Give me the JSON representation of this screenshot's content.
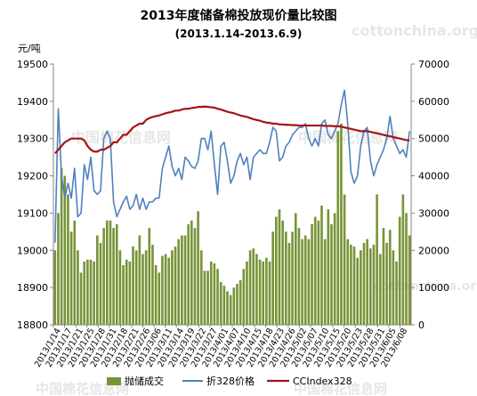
{
  "chart_data": {
    "type": "bar+line",
    "title": "2013年度储备棉投放现价量比较图",
    "subtitle": "(2013.1.14-2013.6.9)",
    "ylabel_left": "元/吨",
    "ylim_left": [
      18800,
      19500
    ],
    "yticks_left": [
      18800,
      18900,
      19000,
      19100,
      19200,
      19300,
      19400,
      19500
    ],
    "ylim_right": [
      0,
      70000
    ],
    "yticks_right": [
      0,
      10000,
      20000,
      30000,
      40000,
      50000,
      60000,
      70000
    ],
    "x_tick_labels": [
      "2013/1/14",
      "2013/1/17",
      "2013/1/21",
      "2013/1/25",
      "2013/1/28",
      "2013/1/31",
      "2013/2/18",
      "2013/2/21",
      "2013/2/26",
      "2013/3/06",
      "2013/3/11",
      "2013/3/14",
      "2013/3/19",
      "2013/3/22",
      "2013/3/27",
      "2013/4/01",
      "2013/4/07",
      "2013/4/10",
      "2013/4/15",
      "2013/4/18",
      "2013/4/23",
      "2013/4/26",
      "2013/5/02",
      "2013/5/07",
      "2013/5/10",
      "2013/5/15",
      "2013/5/20",
      "2013/5/23",
      "2013/5/28",
      "2013/5/31",
      "2013/6/05",
      "2013/6/08"
    ],
    "series": [
      {
        "name": "抛储成交",
        "kind": "bar",
        "axis": "right",
        "color": "#789438",
        "values": [
          20000,
          30000,
          42000,
          40000,
          35000,
          25000,
          28000,
          20000,
          14000,
          17000,
          17500,
          17500,
          17000,
          24000,
          22000,
          26000,
          28000,
          28000,
          26000,
          27000,
          20000,
          16000,
          17500,
          17000,
          21000,
          20000,
          24000,
          19000,
          20000,
          26000,
          21500,
          16000,
          14000,
          18500,
          19000,
          18000,
          20000,
          21000,
          23000,
          24000,
          24000,
          27000,
          28000,
          26000,
          30500,
          20000,
          14500,
          14500,
          17000,
          16500,
          15000,
          11500,
          10500,
          9000,
          8000,
          10000,
          11000,
          12000,
          15000,
          17000,
          20000,
          20500,
          19000,
          17500,
          17000,
          18000,
          17000,
          25000,
          29000,
          31000,
          28000,
          25000,
          22000,
          25000,
          30000,
          26000,
          23000,
          24000,
          23000,
          27000,
          29000,
          28000,
          32000,
          23000,
          31000,
          27000,
          30000,
          52000,
          54000,
          35000,
          23000,
          21500,
          21000,
          18000,
          20000,
          22000,
          23000,
          20500,
          21500,
          35000,
          19000,
          26000,
          22000,
          25500,
          20000,
          17000,
          29000,
          35000,
          30000,
          24000
        ],
        "x_values_note": ""
      },
      {
        "name": "折328价格",
        "kind": "line",
        "axis": "left",
        "color": "#4f81bd",
        "values": [
          19020,
          19380,
          19200,
          19140,
          19180,
          19140,
          19220,
          19090,
          19100,
          19230,
          19190,
          19250,
          19160,
          19150,
          19160,
          19300,
          19320,
          19300,
          19130,
          19090,
          19110,
          19130,
          19145,
          19110,
          19120,
          19150,
          19110,
          19140,
          19110,
          19130,
          19130,
          19140,
          19140,
          19220,
          19250,
          19280,
          19225,
          19200,
          19220,
          19190,
          19250,
          19240,
          19225,
          19220,
          19240,
          19300,
          19300,
          19270,
          19320,
          19230,
          19150,
          19280,
          19290,
          19240,
          19180,
          19200,
          19240,
          19260,
          19230,
          19250,
          19190,
          19250,
          19260,
          19270,
          19260,
          19260,
          19290,
          19330,
          19320,
          19240,
          19250,
          19280,
          19290,
          19310,
          19320,
          19330,
          19330,
          19340,
          19300,
          19280,
          19300,
          19280,
          19340,
          19350,
          19310,
          19300,
          19320,
          19340,
          19390,
          19430,
          19340,
          19210,
          19180,
          19200,
          19280,
          19320,
          19330,
          19240,
          19200,
          19230,
          19250,
          19270,
          19300,
          19360,
          19300,
          19280,
          19260,
          19270,
          19250,
          19320
        ],
        "x_values_note": ""
      },
      {
        "name": "CCIndex328",
        "kind": "line",
        "axis": "left",
        "color": "#a31515",
        "values": [
          19260,
          19270,
          19280,
          19290,
          19295,
          19300,
          19300,
          19300,
          19300,
          19295,
          19280,
          19270,
          19265,
          19265,
          19270,
          19270,
          19275,
          19280,
          19290,
          19290,
          19300,
          19310,
          19310,
          19320,
          19330,
          19335,
          19340,
          19340,
          19350,
          19355,
          19358,
          19360,
          19362,
          19365,
          19368,
          19370,
          19372,
          19375,
          19375,
          19378,
          19380,
          19380,
          19382,
          19383,
          19385,
          19385,
          19386,
          19385,
          19384,
          19383,
          19380,
          19378,
          19375,
          19372,
          19370,
          19368,
          19365,
          19362,
          19360,
          19358,
          19355,
          19352,
          19350,
          19348,
          19345,
          19343,
          19342,
          19340,
          19340,
          19338,
          19338,
          19337,
          19337,
          19336,
          19336,
          19335,
          19335,
          19335,
          19335,
          19335,
          19335,
          19335,
          19335,
          19334,
          19334,
          19334,
          19333,
          19333,
          19332,
          19330,
          19328,
          19326,
          19324,
          19322,
          19320,
          19320,
          19320,
          19318,
          19316,
          19314,
          19312,
          19310,
          19308,
          19306,
          19304,
          19302,
          19300,
          19298,
          19296,
          19295
        ],
        "x_values_note": ""
      }
    ],
    "legend": {
      "placement": "bottom",
      "entries": [
        "抛储成交",
        "折328价格",
        "CCIndex328"
      ]
    },
    "grid": false
  },
  "watermark": "cottonchina.org"
}
